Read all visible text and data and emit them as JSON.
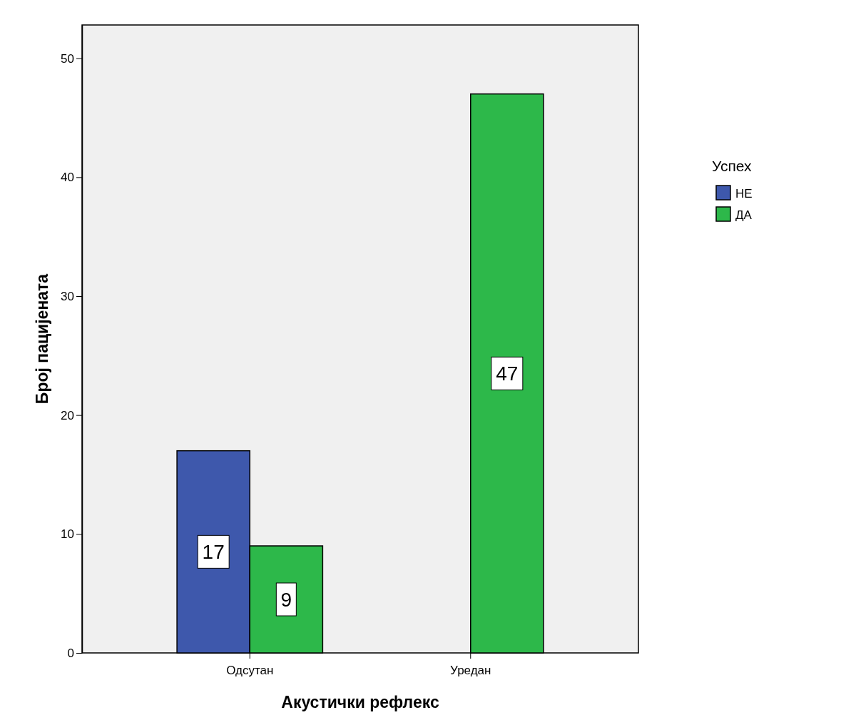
{
  "chart_data": {
    "type": "bar",
    "xlabel": "Акустички рефлекс",
    "ylabel": "Број пацијената",
    "legend_title": "Успех",
    "categories": [
      "Одсутан",
      "Уредан"
    ],
    "series": [
      {
        "name": "НЕ",
        "color": "#3e58ac",
        "values": [
          17,
          null
        ]
      },
      {
        "name": "ДА",
        "color": "#2db84a",
        "values": [
          9,
          47
        ]
      }
    ],
    "ylim": [
      0,
      52.8
    ],
    "yticks": [
      0,
      10,
      20,
      30,
      40,
      50
    ],
    "data_labels": true,
    "legend": "right",
    "grid": false
  }
}
